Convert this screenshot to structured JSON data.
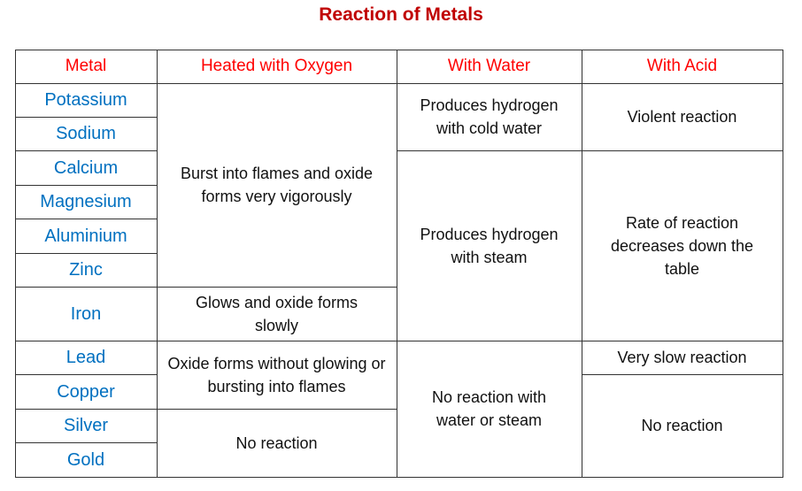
{
  "title": "Reaction of Metals",
  "headers": [
    "Metal",
    "Heated with Oxygen",
    "With Water",
    "With Acid"
  ],
  "metals": [
    "Potassium",
    "Sodium",
    "Calcium",
    "Magnesium",
    "Aluminium",
    "Zinc",
    "Iron",
    "Lead",
    "Copper",
    "Silver",
    "Gold"
  ],
  "oxygen": [
    "Burst into flames and oxide forms very vigorously",
    "Glows and oxide forms slowly",
    "Oxide forms without glowing or bursting into flames",
    "No reaction"
  ],
  "water": [
    "Produces hydrogen with cold water",
    "Produces hydrogen with steam",
    "No reaction with water or steam"
  ],
  "acid": [
    "Violent reaction",
    "Rate of reaction decreases down the table",
    "Very slow reaction",
    "No reaction"
  ],
  "colors": {
    "title": "#c00000",
    "header": "#ff0000",
    "metal": "#0070c0"
  }
}
